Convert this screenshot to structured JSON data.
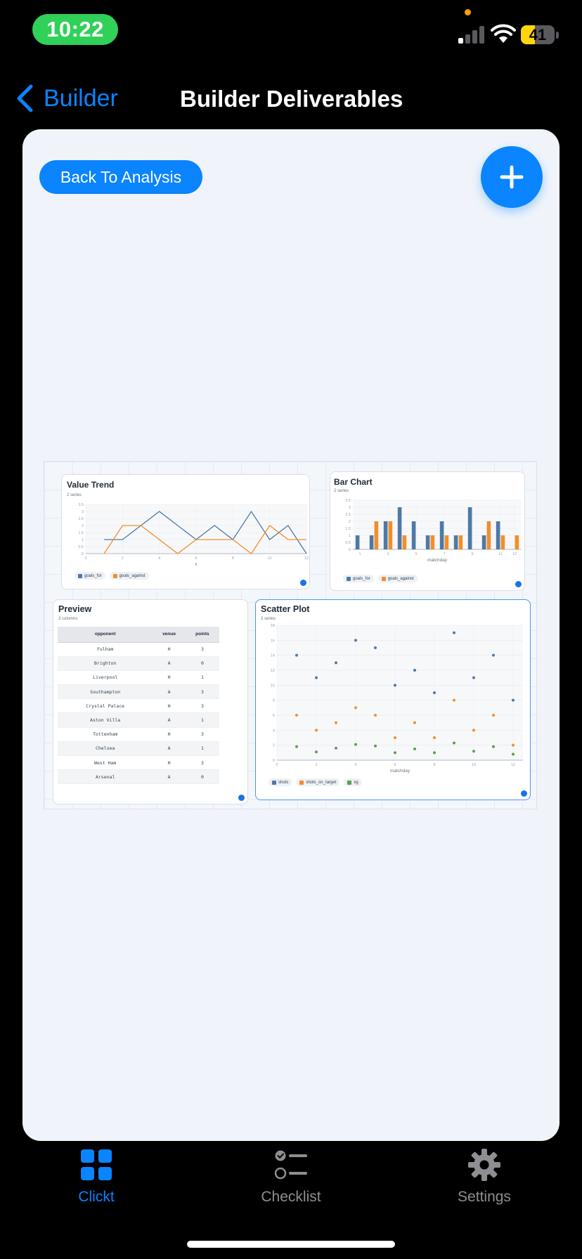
{
  "status_bar": {
    "time": "10:22",
    "battery": 41
  },
  "nav": {
    "back_label": "Builder",
    "title": "Builder Deliverables"
  },
  "toolbar": {
    "back_to_analysis_label": "Back To Analysis"
  },
  "colors": {
    "accent": "#0a84ff",
    "series_blue": "#4e79a7",
    "series_orange": "#f28e2b",
    "series_green": "#59a14f"
  },
  "widgets": {
    "value_trend": {
      "title": "Value Trend",
      "subtitle": "2 series",
      "legend": [
        "goals_for",
        "goals_against"
      ]
    },
    "bar_chart": {
      "title": "Bar Chart",
      "subtitle": "2 series",
      "legend": [
        "goals_for",
        "goals_against"
      ]
    },
    "preview": {
      "title": "Preview",
      "subtitle": "3 columns",
      "columns": [
        "opponent",
        "venue",
        "points"
      ],
      "rows": [
        [
          "Fulham",
          "H",
          "3"
        ],
        [
          "Brighton",
          "A",
          "0"
        ],
        [
          "Liverpool",
          "H",
          "1"
        ],
        [
          "Southampton",
          "A",
          "3"
        ],
        [
          "Crystal Palace",
          "H",
          "3"
        ],
        [
          "Aston Villa",
          "A",
          "1"
        ],
        [
          "Tottenham",
          "H",
          "3"
        ],
        [
          "Chelsea",
          "A",
          "1"
        ],
        [
          "West Ham",
          "H",
          "3"
        ],
        [
          "Arsenal",
          "A",
          "0"
        ]
      ]
    },
    "scatter": {
      "title": "Scatter Plot",
      "subtitle": "3 series",
      "legend": [
        "shots",
        "shots_on_target",
        "xg"
      ]
    }
  },
  "chart_data": [
    {
      "type": "line",
      "title": "Value Trend",
      "xlabel": "x",
      "ylabel": "",
      "x_ticks": [
        "0",
        "2",
        "4",
        "6",
        "8",
        "10",
        "12"
      ],
      "y_ticks": [
        "0",
        "0.5",
        "1",
        "1.5",
        "2",
        "2.5",
        "3",
        "3.5"
      ],
      "xlim": [
        0,
        12
      ],
      "ylim": [
        0,
        3.5
      ],
      "x": [
        1,
        2,
        3,
        4,
        5,
        6,
        7,
        8,
        9,
        10,
        11,
        12
      ],
      "series": [
        {
          "name": "goals_for",
          "values": [
            1,
            1,
            2,
            3,
            2,
            1,
            2,
            1,
            3,
            1,
            2,
            0
          ]
        },
        {
          "name": "goals_against",
          "values": [
            0,
            2,
            2,
            1,
            0,
            1,
            1,
            1,
            0,
            2,
            1,
            1
          ]
        }
      ]
    },
    {
      "type": "bar",
      "title": "Bar Chart",
      "xlabel": "matchday",
      "ylabel": "",
      "x_ticks": [
        "1",
        "3",
        "5",
        "7",
        "9",
        "11",
        "12"
      ],
      "y_ticks": [
        "0",
        "0.5",
        "1",
        "1.5",
        "2",
        "2.5",
        "3",
        "3.5"
      ],
      "ylim": [
        0,
        3.5
      ],
      "categories": [
        "1",
        "2",
        "3",
        "4",
        "5",
        "6",
        "7",
        "8",
        "9",
        "10",
        "11",
        "12"
      ],
      "series": [
        {
          "name": "goals_for",
          "values": [
            1,
            1,
            2,
            3,
            2,
            1,
            2,
            1,
            3,
            1,
            2,
            0
          ]
        },
        {
          "name": "goals_against",
          "values": [
            0,
            2,
            2,
            1,
            0,
            1,
            1,
            1,
            0,
            2,
            1,
            1
          ]
        }
      ]
    },
    {
      "type": "scatter",
      "title": "Scatter Plot",
      "xlabel": "matchday",
      "ylabel": "",
      "x_ticks": [
        "0",
        "2",
        "4",
        "6",
        "8",
        "10",
        "12"
      ],
      "y_ticks": [
        "0",
        "2",
        "4",
        "6",
        "8",
        "10",
        "12",
        "14",
        "16",
        "18"
      ],
      "xlim": [
        0,
        12.5
      ],
      "ylim": [
        0,
        18
      ],
      "x": [
        1,
        2,
        3,
        4,
        5,
        6,
        7,
        8,
        9,
        10,
        11,
        12
      ],
      "series": [
        {
          "name": "shots",
          "values": [
            14,
            11,
            13,
            16,
            15,
            10,
            12,
            9,
            17,
            11,
            14,
            8
          ]
        },
        {
          "name": "shots_on_target",
          "values": [
            6,
            4,
            5,
            7,
            6,
            3,
            5,
            3,
            8,
            4,
            6,
            2
          ]
        },
        {
          "name": "xg",
          "values": [
            1.8,
            1.1,
            1.6,
            2.1,
            1.9,
            1.0,
            1.5,
            1.0,
            2.3,
            1.2,
            1.8,
            0.8
          ]
        }
      ]
    }
  ],
  "tab_bar": {
    "items": [
      {
        "label": "Clickt",
        "active": true
      },
      {
        "label": "Checklist",
        "active": false
      },
      {
        "label": "Settings",
        "active": false
      }
    ]
  }
}
